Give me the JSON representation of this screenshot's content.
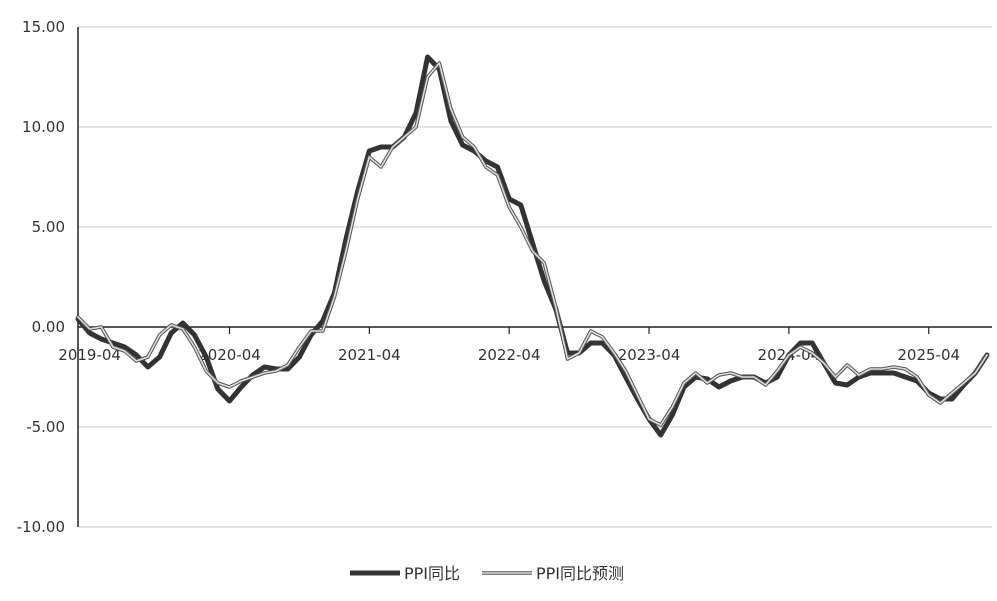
{
  "chart_data": {
    "type": "line",
    "title": "",
    "xlabel": "",
    "ylabel": "",
    "ylim": [
      -10,
      15
    ],
    "yticks": [
      15,
      10,
      5,
      0,
      -5,
      -10
    ],
    "ytick_labels": [
      "15.00",
      "10.00",
      "5.00",
      "0.00",
      "-5.00",
      "-10.00"
    ],
    "x_start": "2019-03",
    "xtick_labels": [
      "2019-04",
      "2020-04",
      "2021-04",
      "2022-04",
      "2023-04",
      "2024-04",
      "2025-04"
    ],
    "grid": true,
    "legend": "bottom",
    "series": [
      {
        "name": "PPI同比",
        "color": "#333333",
        "values": [
          0.4,
          -0.3,
          -0.6,
          -0.8,
          -1.0,
          -1.4,
          -2.0,
          -1.5,
          -0.3,
          0.2,
          -0.4,
          -1.5,
          -3.1,
          -3.7,
          -3.0,
          -2.4,
          -2.0,
          -2.1,
          -2.1,
          -1.5,
          -0.4,
          0.3,
          1.7,
          4.4,
          6.8,
          8.8,
          9.0,
          9.0,
          9.5,
          10.7,
          13.5,
          12.9,
          10.3,
          9.1,
          8.8,
          8.3,
          8.0,
          6.4,
          6.1,
          4.2,
          2.3,
          0.9,
          -1.3,
          -1.3,
          -0.8,
          -0.8,
          -1.4,
          -2.5,
          -3.6,
          -4.6,
          -5.4,
          -4.4,
          -3.0,
          -2.5,
          -2.6,
          -3.0,
          -2.7,
          -2.5,
          -2.5,
          -2.8,
          -2.5,
          -1.4,
          -0.8,
          -0.8,
          -1.8,
          -2.8,
          -2.9,
          -2.5,
          -2.3,
          -2.3,
          -2.3,
          -2.5,
          -2.7,
          -3.3,
          -3.6,
          -3.6,
          -2.9,
          -2.3,
          -1.4
        ]
      },
      {
        "name": "PPI同比预测",
        "color": "#aaaaaa",
        "values": [
          0.5,
          -0.1,
          0.0,
          -1.0,
          -1.2,
          -1.7,
          -1.5,
          -0.4,
          0.1,
          -0.1,
          -1.0,
          -2.2,
          -2.8,
          -3.0,
          -2.7,
          -2.5,
          -2.3,
          -2.2,
          -1.9,
          -1.0,
          -0.2,
          -0.2,
          1.5,
          3.8,
          6.4,
          8.5,
          8.0,
          9.0,
          9.5,
          10.0,
          12.5,
          13.2,
          10.9,
          9.5,
          9.0,
          8.0,
          7.6,
          6.0,
          5.0,
          3.8,
          3.2,
          1.0,
          -1.6,
          -1.3,
          -0.2,
          -0.5,
          -1.3,
          -2.2,
          -3.4,
          -4.6,
          -4.9,
          -4.0,
          -2.8,
          -2.3,
          -2.8,
          -2.4,
          -2.3,
          -2.5,
          -2.5,
          -2.9,
          -2.2,
          -1.4,
          -1.0,
          -1.3,
          -1.8,
          -2.5,
          -1.9,
          -2.4,
          -2.1,
          -2.1,
          -2.0,
          -2.1,
          -2.5,
          -3.4,
          -3.8,
          -3.3,
          -2.8,
          -2.3,
          -1.4
        ]
      }
    ]
  }
}
